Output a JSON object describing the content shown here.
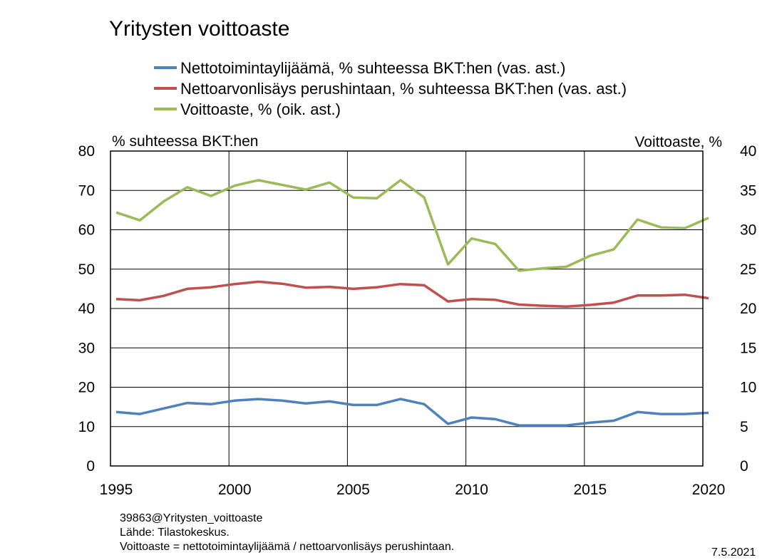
{
  "chart_data": {
    "type": "line",
    "title": "Yritysten voittoaste",
    "left_axis_label": "% suhteessa BKT:hen",
    "right_axis_label": "Voittoaste, %",
    "left_ylim": [
      0,
      80
    ],
    "left_ticks": [
      "0",
      "10",
      "20",
      "30",
      "40",
      "50",
      "60",
      "70",
      "80"
    ],
    "right_ylim": [
      0,
      40
    ],
    "right_ticks": [
      "0",
      "5",
      "10",
      "15",
      "20",
      "25",
      "30",
      "35",
      "40"
    ],
    "xlim": [
      1995,
      2020
    ],
    "x_ticks": [
      "1995",
      "2000",
      "2005",
      "2010",
      "2015",
      "2020"
    ],
    "grid": true,
    "legend_position": "top",
    "x": [
      1995,
      1996,
      1997,
      1998,
      1999,
      2000,
      2001,
      2002,
      2003,
      2004,
      2005,
      2006,
      2007,
      2008,
      2009,
      2010,
      2011,
      2012,
      2013,
      2014,
      2015,
      2016,
      2017,
      2018,
      2019,
      2020
    ],
    "series": [
      {
        "name": "Nettotoimintaylijäämä, % suhteessa BKT:hen (vas. ast.)",
        "axis": "left",
        "color": "#4f81bd",
        "values": [
          13.7,
          13.2,
          14.6,
          16.0,
          15.7,
          16.6,
          17.0,
          16.6,
          15.9,
          16.4,
          15.5,
          15.5,
          17.0,
          15.7,
          10.7,
          12.3,
          11.9,
          10.3,
          10.3,
          10.3,
          11.0,
          11.5,
          13.7,
          13.2,
          13.2,
          13.5
        ]
      },
      {
        "name": "Nettoarvonlisäys perushintaan, % suhteessa BKT:hen (vas. ast.)",
        "axis": "left",
        "color": "#c0504d",
        "values": [
          42.4,
          42.1,
          43.2,
          45.0,
          45.4,
          46.2,
          46.8,
          46.3,
          45.3,
          45.5,
          45.0,
          45.4,
          46.2,
          45.9,
          41.8,
          42.4,
          42.2,
          41.0,
          40.7,
          40.5,
          40.9,
          41.5,
          43.3,
          43.3,
          43.5,
          42.6
        ]
      },
      {
        "name": "Voittoaste, %  (oik. ast.)",
        "axis": "right",
        "color": "#9bbb59",
        "values": [
          32.2,
          31.2,
          33.6,
          35.4,
          34.3,
          35.6,
          36.3,
          35.7,
          35.1,
          36.0,
          34.1,
          34.0,
          36.3,
          34.1,
          25.6,
          28.9,
          28.2,
          24.8,
          25.1,
          25.3,
          26.7,
          27.5,
          31.3,
          30.3,
          30.2,
          31.5
        ]
      }
    ]
  },
  "footer": {
    "id_line": "39863@Yritysten_voittoaste",
    "source": "Lähde: Tilastokeskus.",
    "note": "Voittoaste = nettotoimintaylijäämä  / nettoarvonlisäys perushintaan.",
    "date": "7.5.2021"
  }
}
